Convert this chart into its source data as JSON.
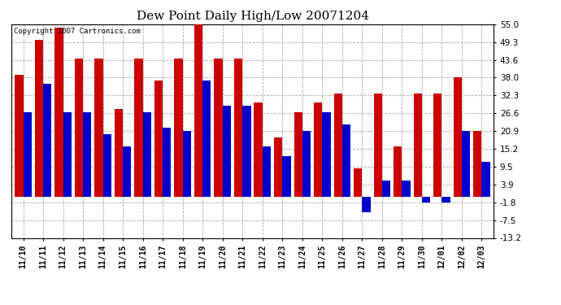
{
  "title": "Dew Point Daily High/Low 20071204",
  "copyright": "Copyright 2007 Cartronics.com",
  "dates": [
    "11/10",
    "11/11",
    "11/12",
    "11/13",
    "11/14",
    "11/15",
    "11/16",
    "11/17",
    "11/18",
    "11/19",
    "11/20",
    "11/21",
    "11/22",
    "11/23",
    "11/24",
    "11/25",
    "11/26",
    "11/27",
    "11/28",
    "11/29",
    "11/30",
    "12/01",
    "12/02",
    "12/03"
  ],
  "highs": [
    39,
    50,
    54,
    44,
    44,
    28,
    44,
    37,
    44,
    55,
    44,
    44,
    30,
    19,
    27,
    30,
    33,
    9,
    33,
    16,
    33,
    33,
    38,
    21
  ],
  "lows": [
    27,
    36,
    27,
    27,
    20,
    16,
    27,
    22,
    21,
    37,
    29,
    29,
    16,
    13,
    21,
    27,
    23,
    -5,
    5,
    5,
    -2,
    -2,
    21,
    11
  ],
  "high_color": "#cc0000",
  "low_color": "#0000cc",
  "ylim": [
    -13.2,
    55.0
  ],
  "yticks": [
    -13.2,
    -7.5,
    -1.8,
    3.9,
    9.5,
    15.2,
    20.9,
    26.6,
    32.3,
    38.0,
    43.6,
    49.3,
    55.0
  ],
  "bg_color": "#ffffff",
  "grid_color": "#aaaaaa",
  "bar_width": 0.42,
  "figsize": [
    6.9,
    3.75
  ],
  "dpi": 100
}
